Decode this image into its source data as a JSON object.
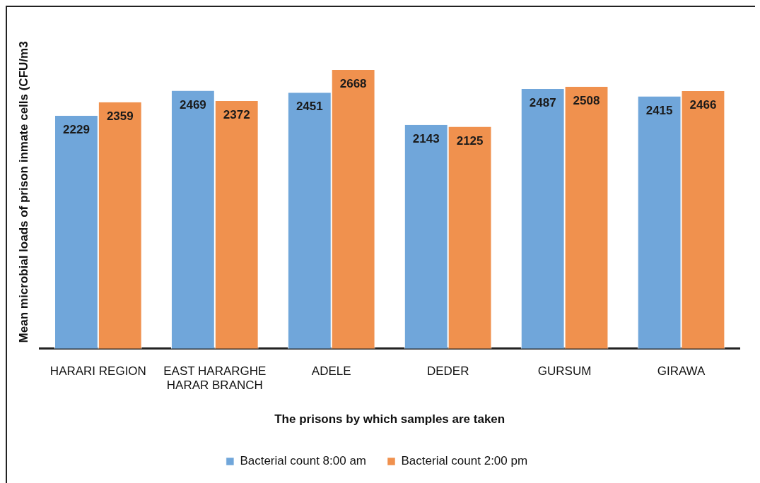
{
  "chart_data": {
    "type": "bar",
    "xlabel": "The prisons by which samples are taken",
    "ylabel": "Mean microbial loads of prison inmate cells (CFU/m3",
    "categories": [
      "HARARI REGION",
      "EAST HARARGHE HARAR BRANCH",
      "ADELE",
      "DEDER",
      "GURSUM",
      "GIRAWA"
    ],
    "series": [
      {
        "name": "Bacterial count 8:00 am",
        "color": "#70a6da",
        "values": [
          2229,
          2469,
          2451,
          2143,
          2487,
          2415
        ]
      },
      {
        "name": "Bacterial count 2:00 pm",
        "color": "#f0914e",
        "values": [
          2359,
          2372,
          2668,
          2125,
          2508,
          2466
        ]
      }
    ],
    "data_labels": true,
    "legend": "bottom",
    "tick_labels": "x",
    "grid": false
  }
}
